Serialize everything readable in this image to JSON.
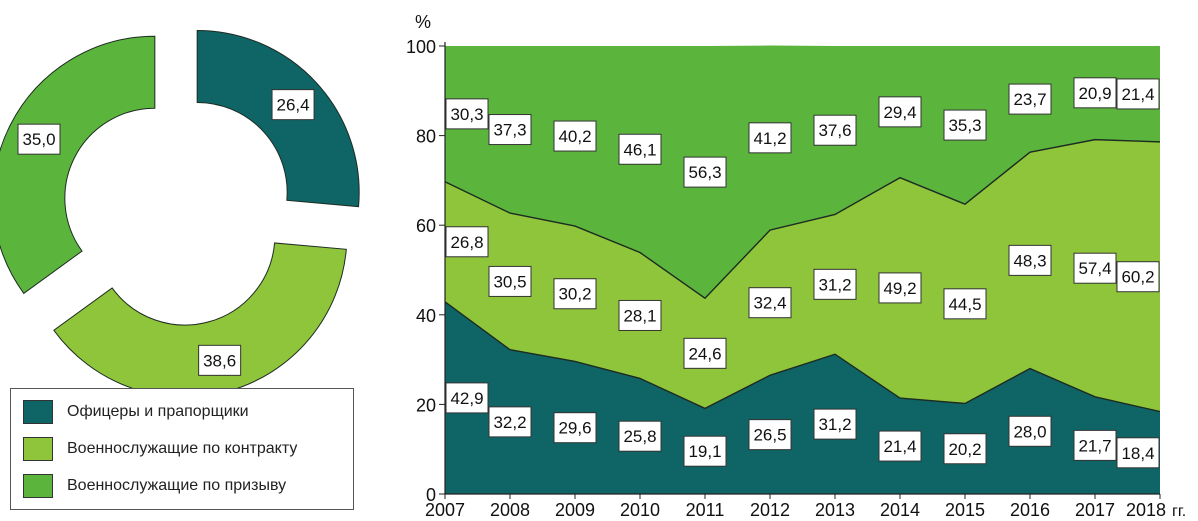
{
  "colors": {
    "officers": "#0f6566",
    "contract": "#8fc53a",
    "conscript": "#5bb53c",
    "line": "#1d2b22"
  },
  "legend": {
    "items": [
      {
        "key": "officers",
        "label": "Офицеры и прапорщики"
      },
      {
        "key": "contract",
        "label": "Военнослужащие по контракту"
      },
      {
        "key": "conscript",
        "label": "Военнослужащие по призыву"
      }
    ]
  },
  "chart_data": [
    {
      "type": "pie",
      "variant": "donut-exploded",
      "slices": [
        {
          "key": "officers",
          "value": 26.4,
          "label": "26,4"
        },
        {
          "key": "contract",
          "value": 38.6,
          "label": "38,6"
        },
        {
          "key": "conscript",
          "value": 35.0,
          "label": "35,0"
        }
      ]
    },
    {
      "type": "area",
      "stacked": true,
      "ylabel": "%",
      "xunit": "гг.",
      "ylim": [
        0,
        100
      ],
      "yticks": [
        0,
        20,
        40,
        60,
        80,
        100
      ],
      "categories": [
        "2007",
        "2008",
        "2009",
        "2010",
        "2011",
        "2012",
        "2013",
        "2014",
        "2015",
        "2016",
        "2017",
        "2018"
      ],
      "series": [
        {
          "key": "officers",
          "values": [
            42.9,
            32.2,
            29.6,
            25.8,
            19.1,
            26.5,
            31.2,
            21.4,
            20.2,
            28.0,
            21.7,
            18.4
          ],
          "labels": [
            "42,9",
            "32,2",
            "29,6",
            "25,8",
            "19,1",
            "26,5",
            "31,2",
            "21,4",
            "20,2",
            "28,0",
            "21,7",
            "18,4"
          ]
        },
        {
          "key": "contract",
          "values": [
            26.8,
            30.5,
            30.2,
            28.1,
            24.6,
            32.4,
            31.2,
            49.2,
            44.5,
            48.3,
            57.4,
            60.2
          ],
          "labels": [
            "26,8",
            "30,5",
            "30,2",
            "28,1",
            "24,6",
            "32,4",
            "31,2",
            "49,2",
            "44,5",
            "48,3",
            "57,4",
            "60,2"
          ]
        },
        {
          "key": "conscript",
          "values": [
            30.3,
            37.3,
            40.2,
            46.1,
            56.3,
            41.2,
            37.6,
            29.4,
            35.3,
            23.7,
            20.9,
            21.4
          ],
          "labels": [
            "30,3",
            "37,3",
            "40,2",
            "46,1",
            "56,3",
            "41,2",
            "37,6",
            "29,4",
            "35,3",
            "23,7",
            "20,9",
            "21,4"
          ]
        }
      ]
    }
  ]
}
